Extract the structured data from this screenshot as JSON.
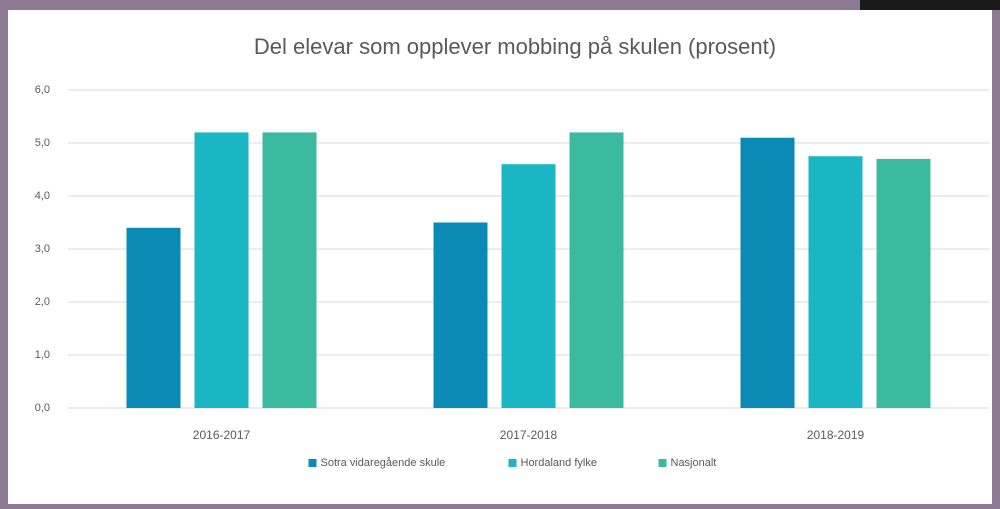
{
  "chart_data": {
    "type": "bar",
    "title": "Del elevar som opplever mobbing på skulen (prosent)",
    "categories": [
      "2016-2017",
      "2017-2018",
      "2018-2019"
    ],
    "series": [
      {
        "name": "Sotra vidaregående skule",
        "color": "#0a8ab4",
        "values": [
          3.4,
          3.5,
          5.1
        ]
      },
      {
        "name": "Hordaland fylke",
        "color": "#1ab6c4",
        "values": [
          5.2,
          4.6,
          4.75
        ]
      },
      {
        "name": "Nasjonalt",
        "color": "#3cbaa0",
        "values": [
          5.2,
          5.2,
          4.7
        ]
      }
    ],
    "ylim": [
      0,
      6
    ],
    "yticks": [
      {
        "value": 0,
        "label": "0,0"
      },
      {
        "value": 1,
        "label": "1,0"
      },
      {
        "value": 2,
        "label": "2,0"
      },
      {
        "value": 3,
        "label": "3,0"
      },
      {
        "value": 4,
        "label": "4,0"
      },
      {
        "value": 5,
        "label": "5,0"
      },
      {
        "value": 6,
        "label": "6,0"
      }
    ],
    "grid": true,
    "legend": "bottom"
  }
}
